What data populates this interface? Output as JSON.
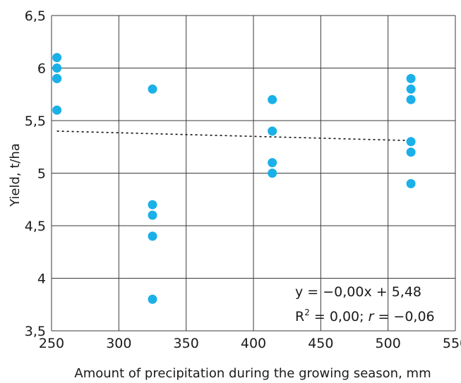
{
  "chart_data": {
    "type": "scatter",
    "title": "",
    "xlabel": "Amount of precipitation during the growing season, mm",
    "ylabel": "Yield, t/ha",
    "xlim": [
      250,
      550
    ],
    "ylim": [
      3.5,
      6.5
    ],
    "xticks": [
      "250",
      "300",
      "350",
      "400",
      "450",
      "500",
      "550"
    ],
    "yticks": [
      "3,5",
      "4",
      "4,5",
      "5",
      "5,5",
      "6",
      "6,5"
    ],
    "grid": true,
    "point_color": "#1ab0e8",
    "points": [
      {
        "x": 254,
        "y": 6.1
      },
      {
        "x": 254,
        "y": 6.0
      },
      {
        "x": 254,
        "y": 5.9
      },
      {
        "x": 254,
        "y": 5.9
      },
      {
        "x": 254,
        "y": 5.6
      },
      {
        "x": 325,
        "y": 5.8
      },
      {
        "x": 325,
        "y": 4.7
      },
      {
        "x": 325,
        "y": 4.6
      },
      {
        "x": 325,
        "y": 4.4
      },
      {
        "x": 325,
        "y": 3.8
      },
      {
        "x": 414,
        "y": 5.7
      },
      {
        "x": 414,
        "y": 5.4
      },
      {
        "x": 414,
        "y": 5.1
      },
      {
        "x": 414,
        "y": 5.0
      },
      {
        "x": 517,
        "y": 5.9
      },
      {
        "x": 517,
        "y": 5.8
      },
      {
        "x": 517,
        "y": 5.7
      },
      {
        "x": 517,
        "y": 5.3
      },
      {
        "x": 517,
        "y": 5.2
      },
      {
        "x": 517,
        "y": 4.9
      }
    ],
    "trendline": {
      "style": "dotted",
      "x": [
        254,
        517
      ],
      "y": [
        5.4,
        5.31
      ]
    },
    "annotation": {
      "equation": "y = −0,00x + 5,48",
      "r2_label": "R",
      "r2_sup": "2",
      "r2_value": " = 0,00; ",
      "r_label": "r",
      "r_value": " = −0,06"
    }
  }
}
